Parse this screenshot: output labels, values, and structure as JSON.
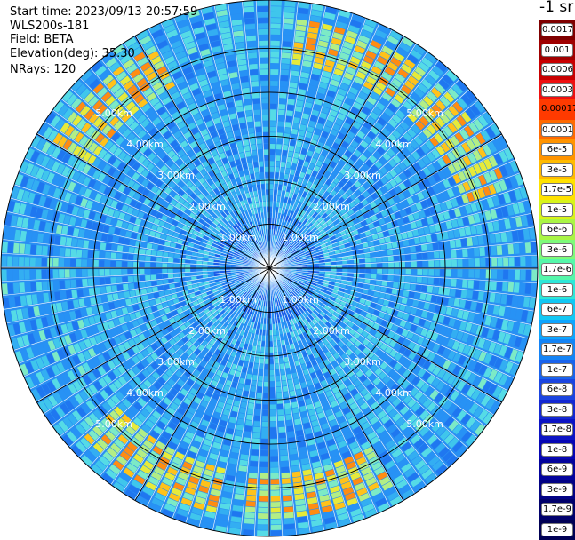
{
  "header": {
    "start_time": "Start time: 2023/09/13 20:57:59",
    "instrument": "WLS200s-181",
    "field": "Field: BETA",
    "elevation": "Elevation(deg): 35.30",
    "nrays": "NRays: 120"
  },
  "colorbar": {
    "unit": "-1 sr",
    "labels": [
      "0.0017",
      "0.001",
      "0.0006",
      "0.0003",
      "0.00017",
      "0.0001",
      "6e-5",
      "3e-5",
      "1.7e-5",
      "1e-5",
      "6e-6",
      "3e-6",
      "1.7e-6",
      "1e-6",
      "6e-7",
      "3e-7",
      "1.7e-7",
      "1e-7",
      "6e-8",
      "3e-8",
      "1.7e-8",
      "1e-8",
      "6e-9",
      "3e-9",
      "1.7e-9",
      "1e-9"
    ],
    "colors": [
      "#7f0000",
      "#a00000",
      "#c80000",
      "#ee1010",
      "#ff3a00",
      "#ff6a00",
      "#ff9400",
      "#ffbb00",
      "#ffe200",
      "#d7f41b",
      "#a9f545",
      "#7dfb7a",
      "#55f7aa",
      "#2ee7d8",
      "#12c8f4",
      "#0ea5ff",
      "#1484f6",
      "#1a63ec",
      "#1b45e0",
      "#1428d2",
      "#0c14c4",
      "#0606b4",
      "#03039c",
      "#020284",
      "#01016c",
      "#000054"
    ]
  },
  "chart_data": {
    "type": "heatmap",
    "projection": "polar PPI scan",
    "field": "BETA",
    "elevation_deg": 35.3,
    "n_rays": 120,
    "range_rings_km": [
      1.0,
      2.0,
      3.0,
      4.0,
      5.0
    ],
    "ring_labels": [
      "1.00km",
      "2.00km",
      "3.00km",
      "4.00km",
      "5.00km"
    ],
    "max_range_km": 6.1,
    "spokes_deg": [
      0,
      30,
      60,
      90,
      120,
      150,
      180,
      210,
      240,
      270,
      300,
      330
    ],
    "value_range": [
      1e-09,
      0.0017
    ],
    "typical_background": "3e-7 to 1e-7 (cyan-blue)",
    "high_backscatter_band": {
      "range_km": [
        4.6,
        5.6
      ],
      "peak_value": "1.7e-5 to 6e-5",
      "azimuths": "north, north-east, south, south-west, north-west"
    }
  }
}
